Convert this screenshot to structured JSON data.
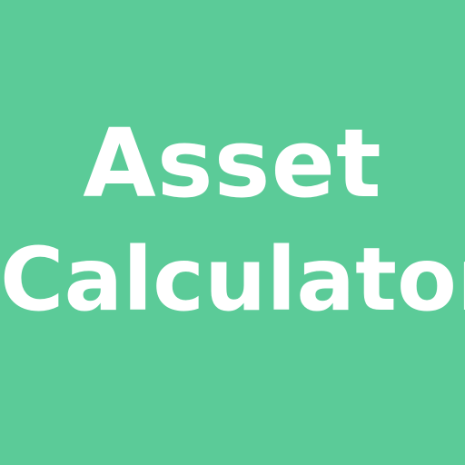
{
  "app_icon": {
    "background_color": "#5BCB98",
    "text_color": "#FFFFFF",
    "title_line_1": "Asset",
    "title_line_2": "Calculator"
  }
}
